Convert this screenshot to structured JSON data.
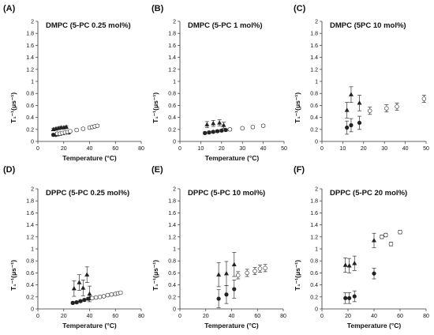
{
  "chart_data": [
    {
      "type": "scatter",
      "panel_label": "(A)",
      "title": "DMPC (5-PC 0.25 mol%)",
      "xlabel": "Temperature (°C)",
      "ylabel": "T₁⁻¹(μs⁻¹)",
      "xlim": [
        0,
        80
      ],
      "ylim": [
        0,
        2
      ],
      "xticks": [
        "0",
        "20",
        "40",
        "60",
        "80"
      ],
      "yticks": [
        "0",
        "0.2",
        "0.4",
        "0.6",
        "0.8",
        "1",
        "1.2",
        "1.4",
        "1.6",
        "1.8",
        "2"
      ],
      "series": [
        {
          "marker": "triangle",
          "points": [
            [
              12,
              0.2
            ],
            [
              14,
              0.21
            ],
            [
              16,
              0.22
            ],
            [
              18,
              0.23
            ],
            [
              20,
              0.23
            ],
            [
              22,
              0.24
            ]
          ],
          "err": 0.02
        },
        {
          "marker": "circle-filled",
          "points": [
            [
              12,
              0.11
            ],
            [
              14,
              0.11
            ],
            [
              16,
              0.12
            ],
            [
              18,
              0.13
            ],
            [
              20,
              0.14
            ],
            [
              22,
              0.15
            ],
            [
              24,
              0.15
            ]
          ],
          "err": 0.02
        },
        {
          "marker": "circle-open",
          "points": [
            [
              15,
              0.13
            ],
            [
              17,
              0.13
            ],
            [
              19,
              0.14
            ],
            [
              21,
              0.15
            ],
            [
              23,
              0.16
            ],
            [
              25,
              0.17
            ],
            [
              30,
              0.19
            ],
            [
              35,
              0.21
            ],
            [
              40,
              0.23
            ],
            [
              42,
              0.24
            ],
            [
              44,
              0.25
            ],
            [
              46,
              0.26
            ]
          ],
          "err": 0.02
        }
      ]
    },
    {
      "type": "scatter",
      "panel_label": "(B)",
      "title": "DMPC (5-PC 1 mol%)",
      "xlabel": "Temperature (°C)",
      "ylabel": "T₁⁻¹(μs⁻¹)",
      "xlim": [
        0,
        50
      ],
      "ylim": [
        0,
        2
      ],
      "xticks": [
        "0",
        "10",
        "20",
        "30",
        "40",
        "50"
      ],
      "yticks": [
        "0",
        "0.2",
        "0.4",
        "0.6",
        "0.8",
        "1",
        "1.2",
        "1.4",
        "1.6",
        "1.8",
        "2"
      ],
      "series": [
        {
          "marker": "triangle",
          "points": [
            [
              13,
              0.28
            ],
            [
              16,
              0.3
            ],
            [
              19,
              0.31
            ],
            [
              21,
              0.27
            ]
          ],
          "err": 0.05
        },
        {
          "marker": "circle-filled",
          "points": [
            [
              12,
              0.14
            ],
            [
              14,
              0.15
            ],
            [
              16,
              0.16
            ],
            [
              18,
              0.17
            ],
            [
              20,
              0.18
            ],
            [
              22,
              0.19
            ]
          ],
          "err": 0.02
        },
        {
          "marker": "circle-open",
          "points": [
            [
              24,
              0.2
            ],
            [
              30,
              0.22
            ],
            [
              35,
              0.24
            ],
            [
              40,
              0.26
            ]
          ],
          "err": 0.02
        }
      ]
    },
    {
      "type": "scatter",
      "panel_label": "(C)",
      "title": "DMPC (5PC 10 mol%)",
      "xlabel": "",
      "ylabel": "T₁⁻¹(μs⁻¹)",
      "xlim": [
        0,
        50
      ],
      "ylim": [
        0,
        2
      ],
      "xticks": [
        "0",
        "10",
        "20",
        "30",
        "40",
        "50"
      ],
      "yticks": [
        "0",
        "0.2",
        "0.4",
        "0.6",
        "0.8",
        "1",
        "1.2",
        "1.4",
        "1.6",
        "1.8",
        "2"
      ],
      "series": [
        {
          "marker": "triangle",
          "points": [
            [
              12,
              0.52
            ],
            [
              14,
              0.78
            ],
            [
              18,
              0.64
            ]
          ],
          "err": 0.13
        },
        {
          "marker": "circle-filled",
          "points": [
            [
              12,
              0.23
            ],
            [
              14,
              0.27
            ],
            [
              18,
              0.31
            ]
          ],
          "err": 0.11
        },
        {
          "marker": "circle-open",
          "points": [
            [
              23,
              0.51
            ],
            [
              31,
              0.55
            ],
            [
              36,
              0.58
            ],
            [
              49,
              0.71
            ]
          ],
          "err": 0.06
        }
      ]
    },
    {
      "type": "scatter",
      "panel_label": "(D)",
      "title": "DPPC (5-PC 0.25 mol%)",
      "xlabel": "Temperature (°C)",
      "ylabel": "T₁⁻¹(μs⁻¹)",
      "xlim": [
        0,
        80
      ],
      "ylim": [
        0,
        2
      ],
      "xticks": [
        "0",
        "20",
        "40",
        "60",
        "80"
      ],
      "yticks": [
        "0",
        "0.2",
        "0.4",
        "0.6",
        "0.8",
        "1",
        "1.2",
        "1.4",
        "1.6",
        "1.8",
        "2"
      ],
      "series": [
        {
          "marker": "triangle",
          "points": [
            [
              28,
              0.34
            ],
            [
              32,
              0.44
            ],
            [
              35,
              0.35
            ],
            [
              38,
              0.57
            ],
            [
              40,
              0.25
            ]
          ],
          "err": 0.13
        },
        {
          "marker": "circle-filled",
          "points": [
            [
              27,
              0.1
            ],
            [
              30,
              0.11
            ],
            [
              33,
              0.13
            ],
            [
              36,
              0.15
            ],
            [
              39,
              0.17
            ],
            [
              41,
              0.18
            ]
          ],
          "err": 0.02
        },
        {
          "marker": "circle-open",
          "points": [
            [
              42,
              0.18
            ],
            [
              45,
              0.19
            ],
            [
              48,
              0.2
            ],
            [
              51,
              0.21
            ],
            [
              54,
              0.23
            ],
            [
              57,
              0.24
            ],
            [
              60,
              0.25
            ],
            [
              62,
              0.26
            ],
            [
              64,
              0.27
            ]
          ],
          "err": 0.02
        }
      ]
    },
    {
      "type": "scatter",
      "panel_label": "(E)",
      "title": "DPPC (5-PC 10 mol%)",
      "xlabel": "Temperature (°C)",
      "ylabel": "T₁⁻¹(μs⁻¹)",
      "xlim": [
        0,
        80
      ],
      "ylim": [
        0,
        2
      ],
      "xticks": [
        "0",
        "20",
        "40",
        "60",
        "80"
      ],
      "yticks": [
        "0",
        "0.2",
        "0.4",
        "0.6",
        "0.8",
        "1",
        "1.2",
        "1.4",
        "1.6",
        "1.8",
        "2"
      ],
      "series": [
        {
          "marker": "triangle",
          "points": [
            [
              30,
              0.57
            ],
            [
              36,
              0.59
            ],
            [
              42,
              0.74
            ]
          ],
          "err": 0.2
        },
        {
          "marker": "circle-filled",
          "points": [
            [
              30,
              0.17
            ],
            [
              36,
              0.24
            ],
            [
              42,
              0.33
            ]
          ],
          "err": 0.15
        },
        {
          "marker": "circle-open",
          "points": [
            [
              45,
              0.56
            ],
            [
              52,
              0.6
            ],
            [
              58,
              0.63
            ],
            [
              62,
              0.67
            ],
            [
              66,
              0.68
            ]
          ],
          "err": 0.06
        }
      ]
    },
    {
      "type": "scatter",
      "panel_label": "(F)",
      "title": "DPPC (5-PC 20 mol%)",
      "xlabel": "Temperature (°C)",
      "ylabel": "T₁⁻¹(μs⁻¹)",
      "xlim": [
        0,
        80
      ],
      "ylim": [
        0,
        2
      ],
      "xticks": [
        "0",
        "20",
        "40",
        "60",
        "80"
      ],
      "yticks": [
        "0",
        "0.2",
        "0.4",
        "0.6",
        "0.8",
        "1",
        "1.2",
        "1.4",
        "1.6",
        "1.8",
        "2"
      ],
      "series": [
        {
          "marker": "triangle",
          "points": [
            [
              18,
              0.73
            ],
            [
              21,
              0.72
            ],
            [
              25,
              0.76
            ],
            [
              40,
              1.14
            ]
          ],
          "err": 0.12
        },
        {
          "marker": "circle-filled",
          "points": [
            [
              18,
              0.18
            ],
            [
              21,
              0.18
            ],
            [
              25,
              0.21
            ],
            [
              40,
              0.59
            ]
          ],
          "err": 0.09
        },
        {
          "marker": "circle-open",
          "points": [
            [
              46,
              1.2
            ],
            [
              49,
              1.23
            ],
            [
              53,
              1.08
            ],
            [
              60,
              1.28
            ]
          ],
          "err": 0.03
        }
      ]
    }
  ]
}
